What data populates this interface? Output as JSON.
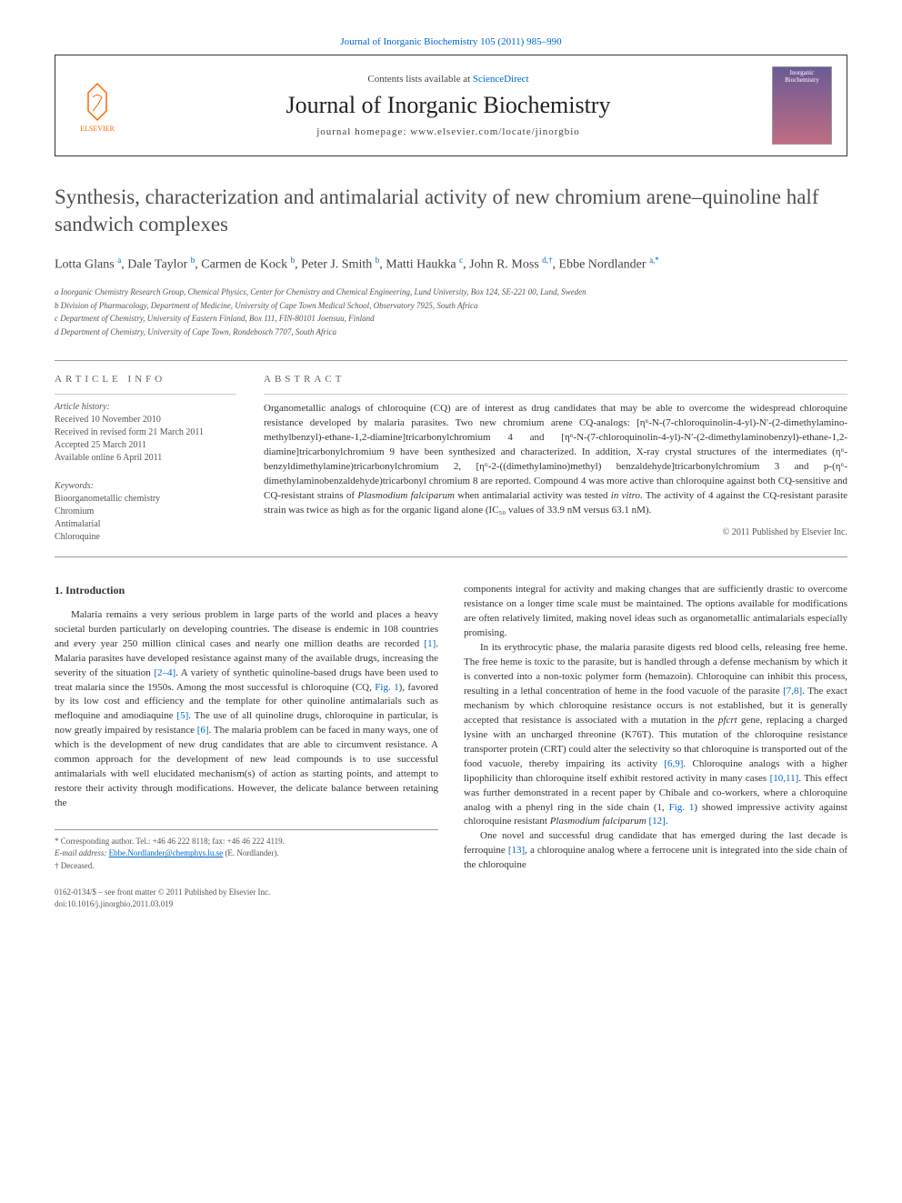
{
  "journal": {
    "top_citation": "Journal of Inorganic Biochemistry 105 (2011) 985–990",
    "contents_prefix": "Contents lists available at ",
    "contents_link": "ScienceDirect",
    "name": "Journal of Inorganic Biochemistry",
    "homepage_prefix": "journal homepage: ",
    "homepage_url": "www.elsevier.com/locate/jinorgbio",
    "publisher_label": "ELSEVIER",
    "cover_label": "Inorganic Biochemistry"
  },
  "title": "Synthesis, characterization and antimalarial activity of new chromium arene–quinoline half sandwich complexes",
  "authors_html": "Lotta Glans <sup>a</sup>, Dale Taylor <sup>b</sup>, Carmen de Kock <sup>b</sup>, Peter J. Smith <sup>b</sup>, Matti Haukka <sup>c</sup>, John R. Moss <sup>d,†</sup>, Ebbe Nordlander <sup>a,*</sup>",
  "affiliations": [
    "a Inorganic Chemistry Research Group, Chemical Physics, Center for Chemistry and Chemical Engineering, Lund University, Box 124, SE-221 00, Lund, Sweden",
    "b Division of Pharmacology, Department of Medicine, University of Cape Town Medical School, Observatory 7925, South Africa",
    "c Department of Chemistry, University of Eastern Finland, Box 111, FIN-80101 Joensuu, Finland",
    "d Department of Chemistry, University of Cape Town, Rondebosch 7707, South Africa"
  ],
  "info": {
    "info_heading": "ARTICLE INFO",
    "abstract_heading": "ABSTRACT",
    "history_head": "Article history:",
    "history": [
      "Received 10 November 2010",
      "Received in revised form 21 March 2011",
      "Accepted 25 March 2011",
      "Available online 6 April 2011"
    ],
    "keywords_head": "Keywords:",
    "keywords": [
      "Bioorganometallic chemistry",
      "Chromium",
      "Antimalarial",
      "Chloroquine"
    ]
  },
  "abstract": "Organometallic analogs of chloroquine (CQ) are of interest as drug candidates that may be able to overcome the widespread chloroquine resistance developed by malaria parasites. Two new chromium arene CQ-analogs: [η⁶-N-(7-chloroquinolin-4-yl)-N′-(2-dimethylamino-methylbenzyl)-ethane-1,2-diamine]tricarbonylchromium 4 and [η⁶-N-(7-chloroquinolin-4-yl)-N′-(2-dimethylaminobenzyl)-ethane-1,2-diamine]tricarbonylchromium 9 have been synthesized and characterized. In addition, X-ray crystal structures of the intermediates (η⁶-benzyldimethylamine)tricarbonylchromium 2, [η⁶-2-((dimethylamino)methyl) benzaldehyde]tricarbonylchromium 3 and p-(η⁶-dimethylaminobenzaldehyde)tricarbonyl chromium 8 are reported. Compound 4 was more active than chloroquine against both CQ-sensitive and CQ-resistant strains of Plasmodium falciparum when antimalarial activity was tested in vitro. The activity of 4 against the CQ-resistant parasite strain was twice as high as for the organic ligand alone (IC₅₀ values of 33.9 nM versus 63.1 nM).",
  "copyright": "© 2011 Published by Elsevier Inc.",
  "section1_heading": "1. Introduction",
  "body": {
    "col1_p1": "Malaria remains a very serious problem in large parts of the world and places a heavy societal burden particularly on developing countries. The disease is endemic in 108 countries and every year 250 million clinical cases and nearly one million deaths are recorded [1]. Malaria parasites have developed resistance against many of the available drugs, increasing the severity of the situation [2–4]. A variety of synthetic quinoline-based drugs have been used to treat malaria since the 1950s. Among the most successful is chloroquine (CQ, Fig. 1), favored by its low cost and efficiency and the template for other quinoline antimalarials such as mefloquine and amodiaquine [5]. The use of all quinoline drugs, chloroquine in particular, is now greatly impaired by resistance [6]. The malaria problem can be faced in many ways, one of which is the development of new drug candidates that are able to circumvent resistance. A common approach for the development of new lead compounds is to use successful antimalarials with well elucidated mechanism(s) of action as starting points, and attempt to restore their activity through modifications. However, the delicate balance between retaining the",
    "col2_p1": "components integral for activity and making changes that are sufficiently drastic to overcome resistance on a longer time scale must be maintained. The options available for modifications are often relatively limited, making novel ideas such as organometallic antimalarials especially promising.",
    "col2_p2": "In its erythrocytic phase, the malaria parasite digests red blood cells, releasing free heme. The free heme is toxic to the parasite, but is handled through a defense mechanism by which it is converted into a non-toxic polymer form (hemazoin). Chloroquine can inhibit this process, resulting in a lethal concentration of heme in the food vacuole of the parasite [7,8]. The exact mechanism by which chloroquine resistance occurs is not established, but it is generally accepted that resistance is associated with a mutation in the pfcrt gene, replacing a charged lysine with an uncharged threonine (K76T). This mutation of the chloroquine resistance transporter protein (CRT) could alter the selectivity so that chloroquine is transported out of the food vacuole, thereby impairing its activity [6,9]. Chloroquine analogs with a higher lipophilicity than chloroquine itself exhibit restored activity in many cases [10,11]. This effect was further demonstrated in a recent paper by Chibale and co-workers, where a chloroquine analog with a phenyl ring in the side chain (1, Fig. 1) showed impressive activity against chloroquine resistant Plasmodium falciparum [12].",
    "col2_p3": "One novel and successful drug candidate that has emerged during the last decade is ferroquine [13], a chloroquine analog where a ferrocene unit is integrated into the side chain of the chloroquine"
  },
  "footnotes": {
    "corr": "* Corresponding author. Tel.: +46 46 222 8118; fax: +46 46 222 4119.",
    "email_label": "E-mail address: ",
    "email": "Ebbe.Nordlander@chemphys.lu.se",
    "email_suffix": " (E. Nordlander).",
    "deceased": "† Deceased."
  },
  "footer": {
    "line1": "0162-0134/$ – see front matter © 2011 Published by Elsevier Inc.",
    "line2": "doi:10.1016/j.jinorgbio.2011.03.019"
  },
  "colors": {
    "link": "#0066cc",
    "text": "#333333",
    "muted": "#555555",
    "rule": "#999999",
    "elsevier": "#ff6600"
  }
}
